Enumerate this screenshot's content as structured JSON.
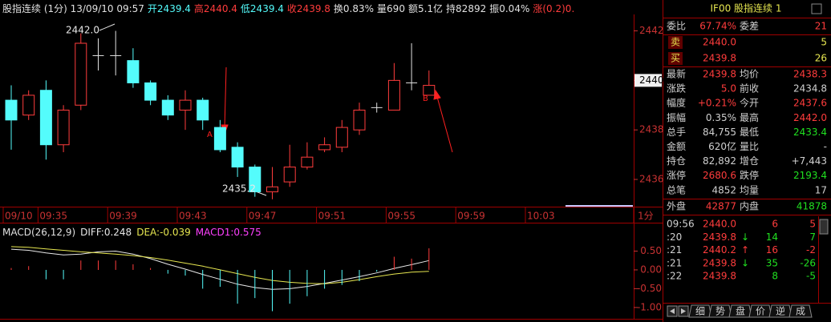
{
  "header": [
    {
      "text": "股指连续 (1分) 13/09/10 09:57",
      "color": "#e0e0e0"
    },
    {
      "text": "开2439.4",
      "color": "#54fcfc"
    },
    {
      "text": "高2440.4",
      "color": "#ff3c3c"
    },
    {
      "text": "低2439.4",
      "color": "#54fcfc"
    },
    {
      "text": "收2439.8",
      "color": "#ff3c3c"
    },
    {
      "text": "换0.83%",
      "color": "#e0e0e0"
    },
    {
      "text": "量690",
      "color": "#e0e0e0"
    },
    {
      "text": "额5.1亿",
      "color": "#e0e0e0"
    },
    {
      "text": "持82892",
      "color": "#e0e0e0"
    },
    {
      "text": "振0.04%",
      "color": "#e0e0e0"
    },
    {
      "text": "涨(0.2)0.",
      "color": "#ff3c3c"
    }
  ],
  "chart_data": [
    {
      "type": "candlestick",
      "categories": [
        "09/10",
        null,
        "09:35",
        null,
        null,
        null,
        "09:39",
        null,
        null,
        null,
        "09:43",
        null,
        null,
        null,
        "09:47",
        null,
        null,
        null,
        "09:51",
        null,
        null,
        null,
        "09:55",
        null,
        null,
        null,
        "09:59",
        null,
        null,
        null,
        "10:03",
        null,
        null,
        null,
        null,
        null
      ],
      "open": [
        2439.2,
        2438.6,
        2439.6,
        2437.4,
        2439.0,
        2441.0,
        2441.0,
        2440.8,
        2439.9,
        2439.2,
        2438.8,
        2439.2,
        2438.1,
        2437.3,
        2436.5,
        2435.5,
        2435.9,
        2436.5,
        2437.2,
        2437.3,
        2438.0,
        2438.9,
        2438.8,
        2439.9,
        2439.4,
        null,
        null,
        null,
        null,
        null,
        null,
        null,
        null,
        null,
        null,
        null
      ],
      "high": [
        2439.8,
        2439.6,
        2440.0,
        2439.0,
        2441.9,
        2441.7,
        2442.0,
        2441.3,
        2440.0,
        2439.4,
        2439.6,
        2439.3,
        2438.4,
        2437.5,
        2436.6,
        2436.5,
        2437.4,
        2437.5,
        2437.7,
        2438.4,
        2439.1,
        2439.1,
        2440.7,
        2441.5,
        2440.4,
        null,
        null,
        null,
        null,
        null,
        null,
        null,
        null,
        null,
        null,
        null
      ],
      "low": [
        2437.2,
        2438.4,
        2436.8,
        2437.1,
        2438.8,
        2440.4,
        2440.2,
        2439.7,
        2439.0,
        2438.4,
        2438.0,
        2438.0,
        2437.1,
        2436.1,
        2435.3,
        2435.2,
        2435.7,
        2436.4,
        2437.1,
        2437.1,
        2437.8,
        2438.7,
        2438.8,
        2439.6,
        2439.4,
        null,
        null,
        null,
        null,
        null,
        null,
        null,
        null,
        null,
        null,
        null
      ],
      "close": [
        2438.4,
        2439.4,
        2437.4,
        2438.8,
        2441.5,
        2441.0,
        2441.0,
        2439.9,
        2439.2,
        2438.6,
        2439.2,
        2438.4,
        2437.2,
        2436.5,
        2435.5,
        2435.7,
        2436.5,
        2436.9,
        2437.4,
        2438.1,
        2438.8,
        2438.9,
        2440.0,
        2439.9,
        2439.8,
        null,
        null,
        null,
        null,
        null,
        null,
        null,
        null,
        null,
        null,
        null
      ],
      "up_color": "#ff3c3c",
      "down_color": "#54fcfc",
      "flat_color": "#e0e0e0",
      "ylim": [
        2434.9,
        2442.6
      ],
      "yticks": [
        2436,
        2438,
        2440,
        2442
      ],
      "annotations": [
        "2442.0",
        "2435.2",
        "A",
        "B"
      ],
      "period_label": "1分"
    },
    {
      "type": "macd",
      "title": "MACD(26,12,9)",
      "series": [
        {
          "name": "DIFF:0.248",
          "color": "#e8e8e8",
          "kind": "line",
          "values": [
            0.55,
            0.52,
            0.45,
            0.4,
            0.42,
            0.48,
            0.5,
            0.42,
            0.3,
            0.15,
            0.02,
            -0.12,
            -0.25,
            -0.38,
            -0.47,
            -0.52,
            -0.5,
            -0.44,
            -0.36,
            -0.27,
            -0.18,
            -0.08,
            0.04,
            0.14,
            0.248,
            null,
            null,
            null,
            null,
            null,
            null,
            null,
            null,
            null,
            null,
            null
          ]
        },
        {
          "name": "DEA:-0.039",
          "color": "#e6e650",
          "kind": "line",
          "values": [
            0.62,
            0.6,
            0.56,
            0.52,
            0.48,
            0.45,
            0.42,
            0.38,
            0.33,
            0.26,
            0.18,
            0.1,
            0.0,
            -0.1,
            -0.2,
            -0.28,
            -0.33,
            -0.36,
            -0.37,
            -0.33,
            -0.26,
            -0.18,
            -0.11,
            -0.06,
            -0.039,
            null,
            null,
            null,
            null,
            null,
            null,
            null,
            null,
            null,
            null,
            null
          ]
        },
        {
          "name": "MACD1:0.575",
          "color": "#ff40ff",
          "kind": "bar",
          "values": [
            0.05,
            0.1,
            -0.25,
            -0.25,
            0.25,
            0.25,
            0.25,
            0.15,
            0.05,
            -0.1,
            -0.15,
            -0.5,
            -0.45,
            -0.9,
            -0.75,
            -1.1,
            -0.9,
            -0.7,
            -0.5,
            -0.4,
            -0.3,
            -0.05,
            0.35,
            0.3,
            0.575,
            null,
            null,
            null,
            null,
            null,
            null,
            null,
            null,
            null,
            null,
            null
          ]
        }
      ],
      "up_color": "#ff3c3c",
      "down_color": "#54fcfc",
      "ylim": [
        -1.28,
        0.83
      ],
      "yticks": [
        {
          "value": -1,
          "label": "-1.00"
        },
        {
          "value": -0.5,
          "label": "-0.50"
        },
        {
          "value": 0,
          "label": "0.00"
        },
        {
          "value": 0.5,
          "label": "0.50"
        }
      ]
    }
  ],
  "quote": {
    "title": "IF00 股指连续 1",
    "order_ratio": {
      "cells": [
        "委比",
        "67.74%",
        "委差",
        "21"
      ],
      "tones": [
        "r",
        "r"
      ]
    },
    "book": [
      {
        "side": "卖",
        "price": "2440.0",
        "qty": "5"
      },
      {
        "side": "买",
        "price": "2439.8",
        "qty": "26"
      }
    ],
    "stats": [
      {
        "cells": [
          "最新",
          "2439.8",
          "均价",
          "2438.3"
        ],
        "tones": [
          "r",
          "r"
        ]
      },
      {
        "cells": [
          "涨跌",
          "5.0",
          "前收",
          "2434.8"
        ],
        "tones": [
          "r",
          "w"
        ]
      },
      {
        "cells": [
          "幅度",
          "+0.21%",
          "今开",
          "2437.6"
        ],
        "tones": [
          "r",
          "r"
        ]
      },
      {
        "cells": [
          "振幅",
          "0.35%",
          "最高",
          "2442.0"
        ],
        "tones": [
          "w",
          "r"
        ]
      },
      {
        "cells": [
          "总手",
          "84,755",
          "最低",
          "2433.4"
        ],
        "tones": [
          "w",
          "g"
        ]
      },
      {
        "cells": [
          "金额",
          "620亿",
          "量比",
          "-"
        ],
        "tones": [
          "w",
          "w"
        ]
      },
      {
        "cells": [
          "持仓",
          "82,892",
          "增仓",
          "+7,443"
        ],
        "tones": [
          "w",
          "w"
        ]
      },
      {
        "cells": [
          "涨停",
          "2680.6",
          "跌停",
          "2193.4"
        ],
        "tones": [
          "r",
          "g"
        ]
      },
      {
        "cells": [
          "总笔",
          "4852",
          "均量",
          "17"
        ],
        "tones": [
          "w",
          "w"
        ]
      }
    ],
    "trade_side": {
      "cells": [
        "外盘",
        "42877",
        "内盘",
        "41878"
      ],
      "tones": [
        "r",
        "g"
      ]
    },
    "ticks": [
      {
        "time": "09:56",
        "price": "2440.0",
        "vol": "6",
        "chg": "5",
        "tone": "r"
      },
      {
        "time": ":20",
        "price": "2439.8",
        "dir": "↓",
        "vol": "14",
        "chg": "7",
        "tone": "g"
      },
      {
        "time": ":21",
        "price": "2440.2",
        "dir": "↑",
        "vol": "16",
        "chg": "-2",
        "tone": "r"
      },
      {
        "time": ":21",
        "price": "2439.8",
        "dir": "↓",
        "vol": "35",
        "chg": "-26",
        "tone": "g"
      },
      {
        "time": ":22",
        "price": "2439.8",
        "vol": "8",
        "chg": "-5",
        "tone": "g"
      }
    ],
    "tabs": [
      "细",
      "势",
      "盘",
      "价",
      "逆",
      "成"
    ]
  }
}
